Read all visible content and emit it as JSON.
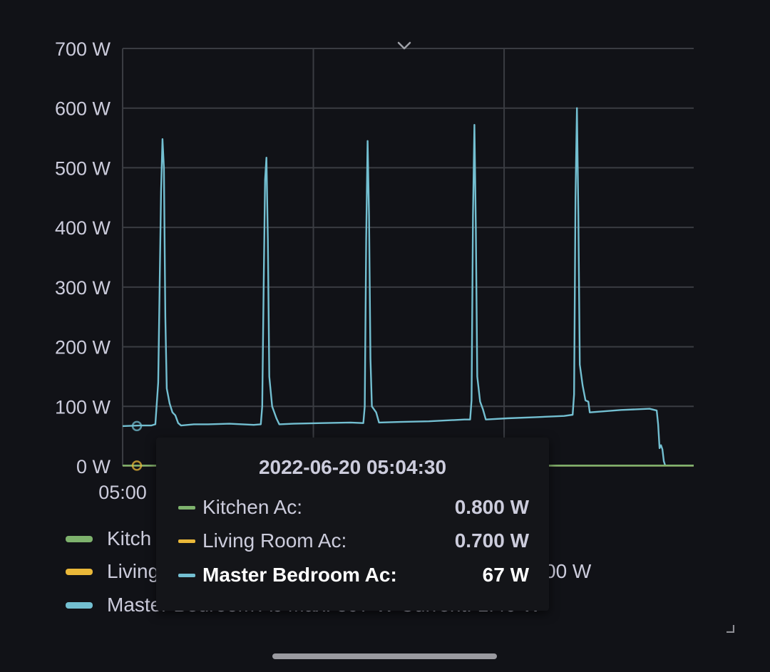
{
  "chart_data": {
    "type": "line",
    "y_unit": "W",
    "yticks": [
      "0 W",
      "100 W",
      "200 W",
      "300 W",
      "400 W",
      "500 W",
      "600 W",
      "700 W"
    ],
    "ylim": [
      0,
      700
    ],
    "xtick_labels": [
      "05:00"
    ],
    "grid": true,
    "legend_placement": "bottom",
    "series": [
      {
        "name": "Master Bedroom Ac",
        "color": "#73bfd1",
        "points": [
          [
            0,
            67
          ],
          [
            12,
            68
          ],
          [
            20,
            68
          ],
          [
            23,
            70
          ],
          [
            25,
            140
          ],
          [
            27,
            460
          ],
          [
            28,
            548
          ],
          [
            29,
            500
          ],
          [
            30,
            250
          ],
          [
            31,
            130
          ],
          [
            33,
            105
          ],
          [
            35,
            90
          ],
          [
            37,
            85
          ],
          [
            39,
            72
          ],
          [
            41,
            68
          ],
          [
            50,
            70
          ],
          [
            60,
            70
          ],
          [
            75,
            71
          ],
          [
            92,
            69
          ],
          [
            97,
            70
          ],
          [
            98,
            100
          ],
          [
            99,
            300
          ],
          [
            100,
            480
          ],
          [
            101,
            517
          ],
          [
            102,
            380
          ],
          [
            103,
            150
          ],
          [
            105,
            100
          ],
          [
            108,
            80
          ],
          [
            110,
            70
          ],
          [
            120,
            71
          ],
          [
            140,
            72
          ],
          [
            160,
            73
          ],
          [
            169,
            72
          ],
          [
            170,
            100
          ],
          [
            171,
            380
          ],
          [
            172,
            545
          ],
          [
            173,
            420
          ],
          [
            174,
            180
          ],
          [
            175,
            100
          ],
          [
            178,
            90
          ],
          [
            180,
            73
          ],
          [
            195,
            74
          ],
          [
            215,
            75
          ],
          [
            240,
            78
          ],
          [
            244,
            78
          ],
          [
            245,
            110
          ],
          [
            246,
            420
          ],
          [
            247,
            572
          ],
          [
            248,
            400
          ],
          [
            249,
            150
          ],
          [
            251,
            108
          ],
          [
            253,
            95
          ],
          [
            255,
            78
          ],
          [
            270,
            80
          ],
          [
            290,
            82
          ],
          [
            310,
            84
          ],
          [
            316,
            86
          ],
          [
            317,
            120
          ],
          [
            318,
            450
          ],
          [
            319,
            600
          ],
          [
            320,
            420
          ],
          [
            321,
            170
          ],
          [
            323,
            135
          ],
          [
            325,
            110
          ],
          [
            327,
            108
          ],
          [
            328,
            90
          ],
          [
            350,
            94
          ],
          [
            370,
            96
          ],
          [
            375,
            93
          ],
          [
            376,
            70
          ],
          [
            377,
            30
          ],
          [
            378,
            35
          ],
          [
            379,
            28
          ],
          [
            380,
            8
          ],
          [
            381,
            1
          ],
          [
            401,
            1
          ]
        ]
      },
      {
        "name": "Living Room Ac",
        "color": "#eab839",
        "points": [
          [
            0,
            0.7
          ],
          [
            401,
            0.7
          ]
        ]
      },
      {
        "name": "Kitchen Ac",
        "color": "#7eb26d",
        "points": [
          [
            0,
            0.8
          ],
          [
            401,
            0.8
          ]
        ]
      }
    ],
    "hover_markers": [
      {
        "series": "Master Bedroom Ac",
        "x": 10,
        "y": 67
      },
      {
        "series": "Living Room Ac",
        "x": 10,
        "y": 0.7
      }
    ]
  },
  "legend": [
    {
      "text": "Kitch",
      "color": "#7eb26d"
    },
    {
      "text": "Living",
      "color": "#eab839",
      "tail": "00 W"
    },
    {
      "text": "Master Bedroom Ac Max: 597 W Current: 1.40 W",
      "color": "#73bfd1"
    }
  ],
  "tooltip": {
    "time": "2022-06-20 05:04:30",
    "rows": [
      {
        "label": "Kitchen Ac:",
        "value": "0.800 W",
        "color": "#7eb26d",
        "active": false
      },
      {
        "label": "Living Room Ac:",
        "value": "0.700 W",
        "color": "#eab839",
        "active": false
      },
      {
        "label": "Master Bedroom Ac:",
        "value": "67 W",
        "color": "#73bfd1",
        "active": true
      }
    ]
  },
  "colors": {
    "background": "#111217",
    "grid": "#3a3c42",
    "text": "#ccccdc"
  },
  "icons": {
    "panel_menu": "chevron-down-icon",
    "resize": "resize-handle-icon"
  }
}
